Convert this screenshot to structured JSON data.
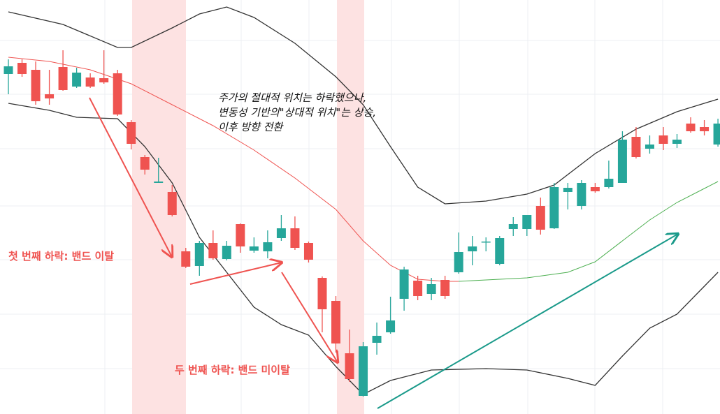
{
  "chart_data": {
    "type": "candlestick",
    "xlim": [
      -0.615,
      52.15
    ],
    "ylim": [
      0,
      600
    ],
    "up_color": "#26a69a",
    "down_color": "#ef5350",
    "open": [
      494,
      510,
      500,
      465,
      504,
      476,
      489,
      488,
      495,
      425,
      375,
      338,
      325,
      240,
      219,
      252,
      229,
      279,
      241,
      240,
      259,
      273,
      252,
      202,
      169,
      94,
      33,
      109,
      124,
      172,
      198,
      179,
      199,
      210,
      240,
      253,
      222,
      272,
      272,
      305,
      273,
      325,
      305,
      332,
      332,
      338,
      404,
      387,
      406,
      394,
      423,
      418,
      393
    ],
    "high": [
      515,
      515,
      512,
      500,
      528,
      503,
      495,
      528,
      500,
      428,
      378,
      374,
      335,
      245,
      255,
      270,
      255,
      280,
      260,
      270,
      292,
      290,
      254,
      204,
      176,
      128,
      110,
      138,
      175,
      218,
      205,
      202,
      205,
      267,
      262,
      260,
      262,
      289,
      292,
      317,
      338,
      338,
      342,
      338,
      370,
      412,
      418,
      406,
      418,
      408,
      432,
      428,
      430
    ],
    "low": [
      465,
      490,
      450,
      450,
      470,
      474,
      474,
      480,
      434,
      386,
      350,
      338,
      290,
      216,
      205,
      228,
      227,
      238,
      238,
      230,
      255,
      242,
      224,
      124,
      95,
      53,
      32,
      92,
      122,
      155,
      170,
      170,
      172,
      208,
      220,
      240,
      220,
      262,
      262,
      264,
      272,
      300,
      300,
      324,
      330,
      338,
      373,
      380,
      385,
      388,
      410,
      406,
      390
    ],
    "close": [
      505,
      494,
      455,
      459,
      471,
      496,
      476,
      482,
      436,
      394,
      357,
      340,
      292,
      218,
      252,
      230,
      248,
      247,
      247,
      253,
      273,
      245,
      228,
      157,
      108,
      57,
      104,
      119,
      141,
      214,
      176,
      193,
      176,
      239,
      247,
      254,
      259,
      279,
      292,
      271,
      332,
      331,
      338,
      326,
      344,
      400,
      375,
      393,
      394,
      400,
      412,
      412,
      423
    ],
    "series": [
      {
        "color": "#333333",
        "x": [
          0,
          4,
          8,
          9,
          12,
          14,
          16,
          18,
          21,
          24,
          26,
          28,
          30,
          32,
          35,
          38,
          40,
          43,
          46,
          49,
          52
        ],
        "values": [
          583,
          565,
          532,
          532,
          560,
          580,
          590,
          575,
          538,
          490,
          450,
          390,
          332,
          308,
          312,
          322,
          335,
          380,
          415,
          440,
          458
        ]
      },
      {
        "color": "#333333",
        "x": [
          0,
          3,
          5,
          8,
          10,
          12,
          14,
          16,
          18,
          20,
          22,
          24,
          26,
          28,
          31,
          35,
          38,
          41,
          43,
          45,
          47,
          49,
          51,
          52
        ],
        "values": [
          452,
          442,
          432,
          430,
          390,
          338,
          260,
          210,
          160,
          135,
          120,
          75,
          35,
          55,
          70,
          72,
          70,
          58,
          48,
          90,
          130,
          150,
          190,
          210
        ]
      },
      {
        "color": "#ef5350",
        "x": [
          0,
          3,
          6,
          9,
          12,
          15,
          18,
          21,
          24,
          26,
          28,
          30,
          32,
          33
        ],
        "values": [
          518,
          512,
          500,
          480,
          450,
          420,
          385,
          345,
          300,
          255,
          220,
          200,
          197,
          197
        ]
      },
      {
        "color": "#4caf50",
        "x": [
          33,
          38,
          41,
          43,
          45,
          47,
          49,
          51,
          52
        ],
        "values": [
          197,
          202,
          210,
          225,
          255,
          285,
          310,
          330,
          340
        ]
      }
    ],
    "annotations": [
      "첫 번째 하락: 밴드 이탈",
      "두 번째 하락: 밴드 미이탈",
      "주가의 절대적 위치는 하락했으나,",
      "변동성 기반의\"상대적 위치\"는 상승,",
      "이후 방향 전환"
    ]
  }
}
